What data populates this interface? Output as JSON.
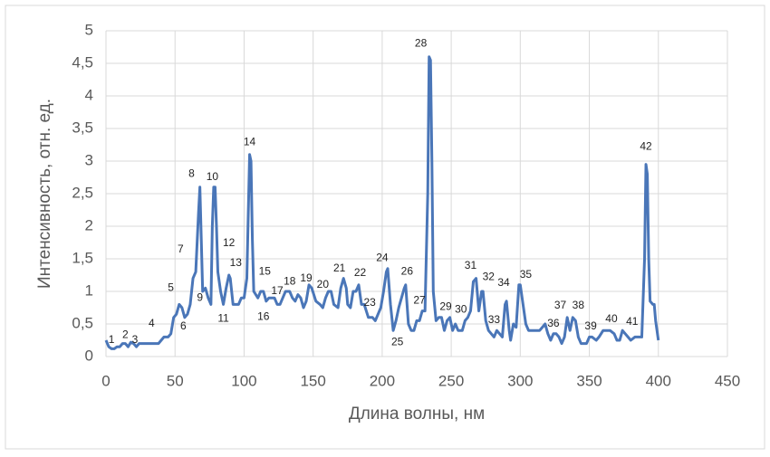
{
  "chart_data": {
    "type": "line",
    "x_label": "Длина волны, нм",
    "y_label": "Интенсивность, отн. ед.",
    "xlim": [
      0,
      450
    ],
    "xticks": [
      0,
      50,
      100,
      150,
      200,
      250,
      300,
      350,
      400,
      450
    ],
    "ylim": [
      0,
      5
    ],
    "yticks": [
      0,
      {
        "value": 0.5,
        "label": "0,5"
      },
      1,
      {
        "value": 1.5,
        "label": "1,5"
      },
      2,
      {
        "value": 2.5,
        "label": "2,5"
      },
      3,
      {
        "value": 3.5,
        "label": "3,5"
      },
      4,
      {
        "value": 4.5,
        "label": "4,5"
      },
      5
    ],
    "grid": true,
    "color": "#4a76b8",
    "x": [
      0,
      2,
      4,
      6,
      8,
      10,
      12,
      14,
      16,
      18,
      20,
      22,
      24,
      26,
      30,
      35,
      38,
      40,
      42,
      45,
      47,
      49,
      51,
      53,
      55,
      57,
      59,
      61,
      63,
      65,
      67,
      68,
      69,
      70,
      72,
      74,
      76,
      77,
      78,
      79,
      80,
      81,
      83,
      85,
      87,
      89,
      90,
      92,
      96,
      98,
      100,
      102,
      104,
      105,
      106,
      107,
      110,
      112,
      114,
      116,
      118,
      122,
      124,
      126,
      128,
      130,
      133,
      135,
      137,
      139,
      141,
      143,
      145,
      147,
      149,
      152,
      155,
      157,
      159,
      161,
      163,
      165,
      168,
      170,
      172,
      174,
      175,
      177,
      179,
      181,
      183,
      185,
      187,
      190,
      193,
      195,
      197,
      199,
      201,
      203,
      204,
      206,
      208,
      210,
      212,
      214,
      216,
      217,
      219,
      221,
      223,
      225,
      227,
      229,
      231,
      233,
      234,
      235,
      236,
      237,
      239,
      241,
      243,
      245,
      247,
      249,
      251,
      253,
      255,
      258,
      260,
      262,
      264,
      266,
      268,
      270,
      272,
      273,
      275,
      277,
      279,
      281,
      283,
      285,
      287,
      289,
      290,
      292,
      293,
      295,
      297,
      299,
      300,
      302,
      304,
      306,
      308,
      312,
      314,
      316,
      318,
      320,
      322,
      324,
      326,
      328,
      330,
      332,
      334,
      336,
      338,
      340,
      342,
      344,
      346,
      348,
      350,
      352,
      355,
      357,
      360,
      365,
      368,
      370,
      372,
      374,
      376,
      378,
      380,
      383,
      386,
      388,
      390,
      391,
      392,
      393,
      394,
      396,
      397,
      398,
      400
    ],
    "values": [
      0.25,
      0.15,
      0.12,
      0.12,
      0.15,
      0.15,
      0.2,
      0.2,
      0.15,
      0.22,
      0.2,
      0.15,
      0.2,
      0.2,
      0.2,
      0.2,
      0.2,
      0.25,
      0.3,
      0.3,
      0.35,
      0.6,
      0.65,
      0.8,
      0.75,
      0.6,
      0.65,
      0.8,
      1.2,
      1.3,
      2.2,
      2.6,
      1.8,
      1.0,
      1.05,
      0.9,
      0.8,
      2.0,
      2.6,
      2.6,
      2.0,
      1.3,
      1.0,
      0.8,
      1.05,
      1.25,
      1.2,
      0.8,
      0.8,
      0.9,
      0.9,
      1.2,
      3.1,
      3.0,
      1.8,
      1.0,
      0.9,
      1.0,
      1.0,
      0.85,
      0.9,
      0.9,
      0.8,
      0.8,
      0.9,
      1.0,
      1.0,
      0.9,
      0.85,
      0.95,
      0.9,
      0.75,
      0.85,
      1.1,
      1.05,
      0.85,
      0.8,
      0.75,
      0.9,
      1.0,
      1.0,
      0.8,
      0.75,
      1.05,
      1.2,
      1.05,
      0.8,
      0.75,
      1.0,
      1.0,
      1.1,
      0.8,
      0.8,
      0.6,
      0.6,
      0.55,
      0.65,
      0.75,
      1.0,
      1.3,
      1.35,
      0.8,
      0.4,
      0.55,
      0.75,
      0.9,
      1.05,
      1.1,
      0.5,
      0.4,
      0.4,
      0.55,
      0.55,
      0.7,
      0.7,
      2.5,
      4.6,
      4.55,
      3.0,
      1.0,
      0.55,
      0.6,
      0.6,
      0.4,
      0.55,
      0.6,
      0.4,
      0.5,
      0.4,
      0.4,
      0.55,
      0.6,
      0.7,
      1.15,
      1.2,
      0.7,
      1.0,
      1.0,
      0.55,
      0.4,
      0.35,
      0.3,
      0.4,
      0.35,
      0.3,
      0.8,
      0.85,
      0.4,
      0.25,
      0.5,
      0.45,
      1.1,
      1.1,
      0.8,
      0.5,
      0.4,
      0.4,
      0.4,
      0.4,
      0.45,
      0.5,
      0.35,
      0.25,
      0.35,
      0.35,
      0.3,
      0.2,
      0.3,
      0.6,
      0.4,
      0.6,
      0.55,
      0.3,
      0.2,
      0.2,
      0.2,
      0.3,
      0.3,
      0.25,
      0.3,
      0.4,
      0.4,
      0.35,
      0.25,
      0.25,
      0.4,
      0.35,
      0.3,
      0.25,
      0.3,
      0.3,
      0.3,
      1.5,
      2.95,
      2.8,
      1.5,
      0.85,
      0.8,
      0.8,
      0.55,
      0.25
    ],
    "annotations": [
      {
        "text": "1",
        "x": 4,
        "y": 0.25
      },
      {
        "text": "2",
        "x": 14,
        "y": 0.33
      },
      {
        "text": "3",
        "x": 21,
        "y": 0.25
      },
      {
        "text": "4",
        "x": 33,
        "y": 0.5
      },
      {
        "text": "5",
        "x": 47,
        "y": 1.05
      },
      {
        "text": "6",
        "x": 56,
        "y": 0.46
      },
      {
        "text": "7",
        "x": 54,
        "y": 1.64
      },
      {
        "text": "8",
        "x": 62,
        "y": 2.8
      },
      {
        "text": "9",
        "x": 68,
        "y": 0.9
      },
      {
        "text": "10",
        "x": 77,
        "y": 2.75
      },
      {
        "text": "11",
        "x": 85,
        "y": 0.58
      },
      {
        "text": "12",
        "x": 89,
        "y": 1.74
      },
      {
        "text": "13",
        "x": 94,
        "y": 1.43
      },
      {
        "text": "14",
        "x": 104,
        "y": 3.29
      },
      {
        "text": "15",
        "x": 115,
        "y": 1.3
      },
      {
        "text": "16",
        "x": 114,
        "y": 0.61
      },
      {
        "text": "17",
        "x": 124,
        "y": 1.0
      },
      {
        "text": "18",
        "x": 133,
        "y": 1.15
      },
      {
        "text": "19",
        "x": 145,
        "y": 1.2
      },
      {
        "text": "20",
        "x": 157,
        "y": 1.1
      },
      {
        "text": "21",
        "x": 169,
        "y": 1.35
      },
      {
        "text": "22",
        "x": 184,
        "y": 1.28
      },
      {
        "text": "23",
        "x": 191,
        "y": 0.82
      },
      {
        "text": "24",
        "x": 200,
        "y": 1.51
      },
      {
        "text": "25",
        "x": 211,
        "y": 0.22
      },
      {
        "text": "26",
        "x": 218,
        "y": 1.3
      },
      {
        "text": "27",
        "x": 227,
        "y": 0.86
      },
      {
        "text": "28",
        "x": 228,
        "y": 4.8
      },
      {
        "text": "29",
        "x": 246,
        "y": 0.76
      },
      {
        "text": "30",
        "x": 257,
        "y": 0.72
      },
      {
        "text": "31",
        "x": 264,
        "y": 1.39
      },
      {
        "text": "32",
        "x": 277,
        "y": 1.22
      },
      {
        "text": "33",
        "x": 281,
        "y": 0.56
      },
      {
        "text": "34",
        "x": 288,
        "y": 1.13
      },
      {
        "text": "35",
        "x": 304,
        "y": 1.25
      },
      {
        "text": "36",
        "x": 324,
        "y": 0.5
      },
      {
        "text": "37",
        "x": 329,
        "y": 0.78
      },
      {
        "text": "38",
        "x": 342,
        "y": 0.78
      },
      {
        "text": "39",
        "x": 351,
        "y": 0.46
      },
      {
        "text": "40",
        "x": 366,
        "y": 0.57
      },
      {
        "text": "41",
        "x": 381,
        "y": 0.53
      },
      {
        "text": "42",
        "x": 391,
        "y": 3.22
      }
    ]
  }
}
